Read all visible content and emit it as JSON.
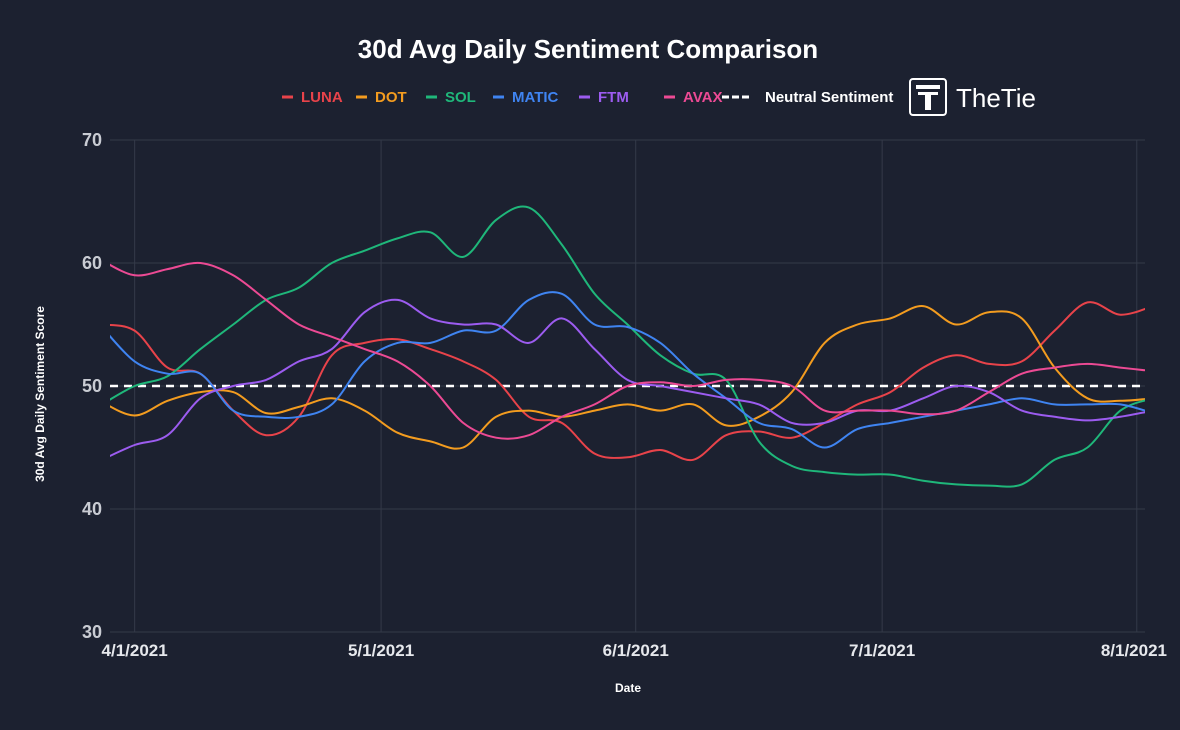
{
  "chart_data": {
    "type": "line",
    "title": "30d Avg Daily Sentiment Comparison",
    "xlabel": "Date",
    "ylabel": "30d Avg Daily Sentiment Score",
    "ylim": [
      30,
      70
    ],
    "yticks": [
      30,
      40,
      50,
      60,
      70
    ],
    "xticks": [
      "4/1/2021",
      "5/1/2021",
      "6/1/2021",
      "7/1/2021",
      "8/1/2021"
    ],
    "x_range_days": [
      -3,
      123
    ],
    "x_tick_days": [
      0,
      30,
      61,
      91,
      122
    ],
    "grid": true,
    "legend_position": "top",
    "reference_line": {
      "name": "Neutral Sentiment",
      "value": 50,
      "color": "#ffffff",
      "style": "dashed"
    },
    "x_days": [
      -4,
      0,
      4,
      8,
      12,
      16,
      20,
      24,
      28,
      32,
      36,
      40,
      44,
      48,
      52,
      56,
      60,
      64,
      68,
      72,
      76,
      80,
      84,
      88,
      92,
      96,
      100,
      104,
      108,
      112,
      116,
      120,
      124
    ],
    "series": [
      {
        "name": "LUNA",
        "color": "#e8434a",
        "values": [
          55.0,
          54.5,
          51.5,
          51.0,
          48.0,
          46.0,
          47.5,
          52.5,
          53.5,
          53.8,
          53.0,
          52.0,
          50.5,
          47.5,
          47.0,
          44.5,
          44.2,
          44.8,
          44.0,
          46.0,
          46.3,
          45.8,
          47.0,
          48.5,
          49.5,
          51.5,
          52.5,
          51.8,
          52.0,
          54.5,
          56.8,
          55.8,
          56.5
        ]
      },
      {
        "name": "DOT",
        "color": "#f39c1f",
        "values": [
          48.7,
          47.6,
          48.8,
          49.5,
          49.5,
          47.8,
          48.3,
          49.0,
          48.0,
          46.2,
          45.5,
          45.0,
          47.5,
          48.0,
          47.5,
          48.0,
          48.5,
          48.0,
          48.5,
          46.8,
          47.5,
          49.5,
          53.5,
          55.0,
          55.5,
          56.5,
          55.0,
          56.0,
          55.5,
          51.5,
          49.0,
          48.8,
          49.0
        ]
      },
      {
        "name": "SOL",
        "color": "#1fb77a",
        "values": [
          48.5,
          50.0,
          50.8,
          53.0,
          55.0,
          57.0,
          58.0,
          60.0,
          61.0,
          62.0,
          62.5,
          60.5,
          63.5,
          64.5,
          61.5,
          57.5,
          55.0,
          52.5,
          51.0,
          50.5,
          45.5,
          43.5,
          43.0,
          42.8,
          42.8,
          42.3,
          42.0,
          41.9,
          42.0,
          44.0,
          45.0,
          48.0,
          49.0
        ]
      },
      {
        "name": "MATIC",
        "color": "#3f84f1",
        "values": [
          54.8,
          52.0,
          51.0,
          51.0,
          48.0,
          47.5,
          47.5,
          48.5,
          52.0,
          53.5,
          53.5,
          54.5,
          54.5,
          57.0,
          57.5,
          55.0,
          54.8,
          53.5,
          51.0,
          49.0,
          47.0,
          46.5,
          45.0,
          46.5,
          47.0,
          47.5,
          48.0,
          48.5,
          49.0,
          48.5,
          48.5,
          48.5,
          47.8
        ]
      },
      {
        "name": "FTM",
        "color": "#9c5cf0",
        "values": [
          44.0,
          45.2,
          46.0,
          49.0,
          50.0,
          50.5,
          52.0,
          53.0,
          56.0,
          57.0,
          55.5,
          55.0,
          55.0,
          53.5,
          55.5,
          53.0,
          50.5,
          50.0,
          49.5,
          49.0,
          48.5,
          47.0,
          47.0,
          48.0,
          48.0,
          49.0,
          50.0,
          49.5,
          48.0,
          47.5,
          47.2,
          47.5,
          48.0
        ]
      },
      {
        "name": "AVAX",
        "color": "#ec4a94",
        "values": [
          60.2,
          59.0,
          59.5,
          60.0,
          59.0,
          57.0,
          55.0,
          54.0,
          53.0,
          52.0,
          50.0,
          47.0,
          45.8,
          46.0,
          47.5,
          48.5,
          50.0,
          50.3,
          50.0,
          50.5,
          50.5,
          50.0,
          48.0,
          48.0,
          48.0,
          47.7,
          48.0,
          49.5,
          51.0,
          51.5,
          51.8,
          51.5,
          51.2
        ]
      }
    ]
  },
  "brand": {
    "name": "TheTie",
    "logo_letter": "T"
  }
}
